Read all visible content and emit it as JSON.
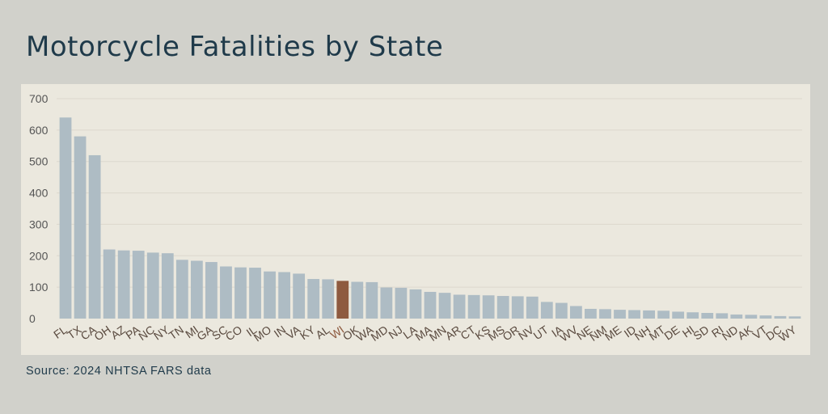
{
  "title": "Motorcycle Fatalities by State",
  "source": "Source: 2024 NHTSA FARS data",
  "colors": {
    "bar": "#aebcc4",
    "highlight": "#8e5a3f",
    "grid": "#dcd8cd",
    "tick": "#555555",
    "label": "#5a4a3f"
  },
  "chart_data": {
    "type": "bar",
    "title": "Motorcycle Fatalities by State",
    "xlabel": "",
    "ylabel": "",
    "ylim": [
      0,
      700
    ],
    "yticks": [
      0,
      100,
      200,
      300,
      400,
      500,
      600,
      700
    ],
    "grid": true,
    "highlight": "WI",
    "categories": [
      "FL",
      "TX",
      "CA",
      "OH",
      "AZ",
      "PA",
      "NC",
      "NY",
      "TN",
      "MI",
      "GA",
      "SC",
      "CO",
      "IL",
      "MO",
      "IN",
      "VA",
      "KY",
      "AL",
      "WI",
      "OK",
      "WA",
      "MD",
      "NJ",
      "LA",
      "MA",
      "MN",
      "AR",
      "CT",
      "KS",
      "MS",
      "OR",
      "NV",
      "UT",
      "IA",
      "WV",
      "NE",
      "NM",
      "ME",
      "ID",
      "NH",
      "MT",
      "DE",
      "HI",
      "SD",
      "RI",
      "ND",
      "AK",
      "VT",
      "DC",
      "WY"
    ],
    "values": [
      640,
      580,
      520,
      220,
      217,
      216,
      210,
      208,
      187,
      184,
      180,
      166,
      163,
      162,
      150,
      148,
      143,
      126,
      125,
      120,
      117,
      116,
      99,
      98,
      93,
      85,
      82,
      76,
      75,
      74,
      72,
      71,
      70,
      53,
      50,
      40,
      31,
      30,
      28,
      27,
      26,
      25,
      22,
      20,
      18,
      17,
      13,
      12,
      10,
      8,
      7
    ]
  }
}
